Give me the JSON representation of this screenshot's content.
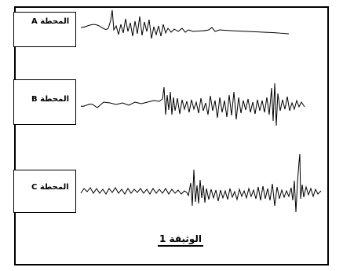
{
  "stations": [
    {
      "id": "A",
      "label": "المحطة A"
    },
    {
      "id": "B",
      "label": "المحطة B"
    },
    {
      "id": "C",
      "label": "المحطة C"
    }
  ],
  "document_label": "الوثيقة 1",
  "colors": {
    "ink": "#000000",
    "background": "#ffffff"
  }
}
